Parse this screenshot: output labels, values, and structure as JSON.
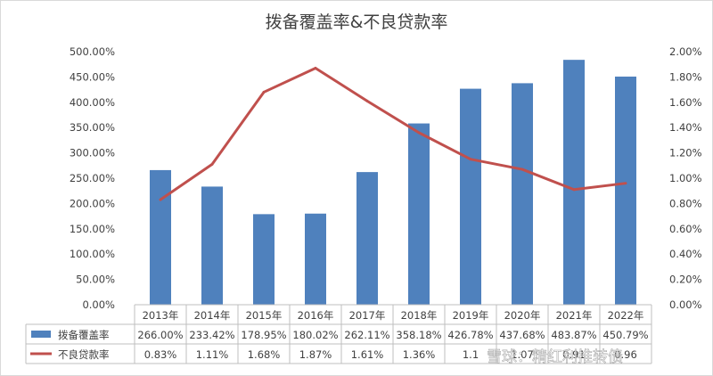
{
  "chart_data": {
    "type": "bar",
    "title": "拨备覆盖率&不良贷款率",
    "categories": [
      "2013年",
      "2014年",
      "2015年",
      "2016年",
      "2017年",
      "2018年",
      "2019年",
      "2020年",
      "2021年",
      "2022年"
    ],
    "series": [
      {
        "name": "拨备覆盖率",
        "type": "bar",
        "axis": "left",
        "color": "#4f81bd",
        "values": [
          266.0,
          233.42,
          178.95,
          180.02,
          262.11,
          358.18,
          426.78,
          437.68,
          483.87,
          450.79
        ],
        "labels": [
          "266.00%",
          "233.42%",
          "178.95%",
          "180.02%",
          "262.11%",
          "358.18%",
          "426.78%",
          "437.68%",
          "483.87%",
          "450.79%"
        ]
      },
      {
        "name": "不良贷款率",
        "type": "line",
        "axis": "right",
        "color": "#c0504d",
        "values": [
          0.83,
          1.11,
          1.68,
          1.87,
          1.61,
          1.36,
          1.15,
          1.07,
          0.91,
          0.96
        ],
        "labels": [
          "0.83%",
          "1.11%",
          "1.68%",
          "1.87%",
          "1.61%",
          "1.36%",
          "1.1",
          "1.07",
          "0.91",
          "0.96"
        ]
      }
    ],
    "left_axis": {
      "ylim": [
        0,
        500
      ],
      "ticks": [
        "0.00%",
        "50.00%",
        "100.00%",
        "150.00%",
        "200.00%",
        "250.00%",
        "300.00%",
        "350.00%",
        "400.00%",
        "450.00%",
        "500.00%"
      ]
    },
    "right_axis": {
      "ylim": [
        0,
        2.0
      ],
      "ticks": [
        "0.00%",
        "0.20%",
        "0.40%",
        "0.60%",
        "0.80%",
        "1.00%",
        "1.20%",
        "1.40%",
        "1.60%",
        "1.80%",
        "2.00%"
      ]
    },
    "grid": false,
    "legend": "data-table"
  },
  "watermark": "雪球：精红利推转债"
}
